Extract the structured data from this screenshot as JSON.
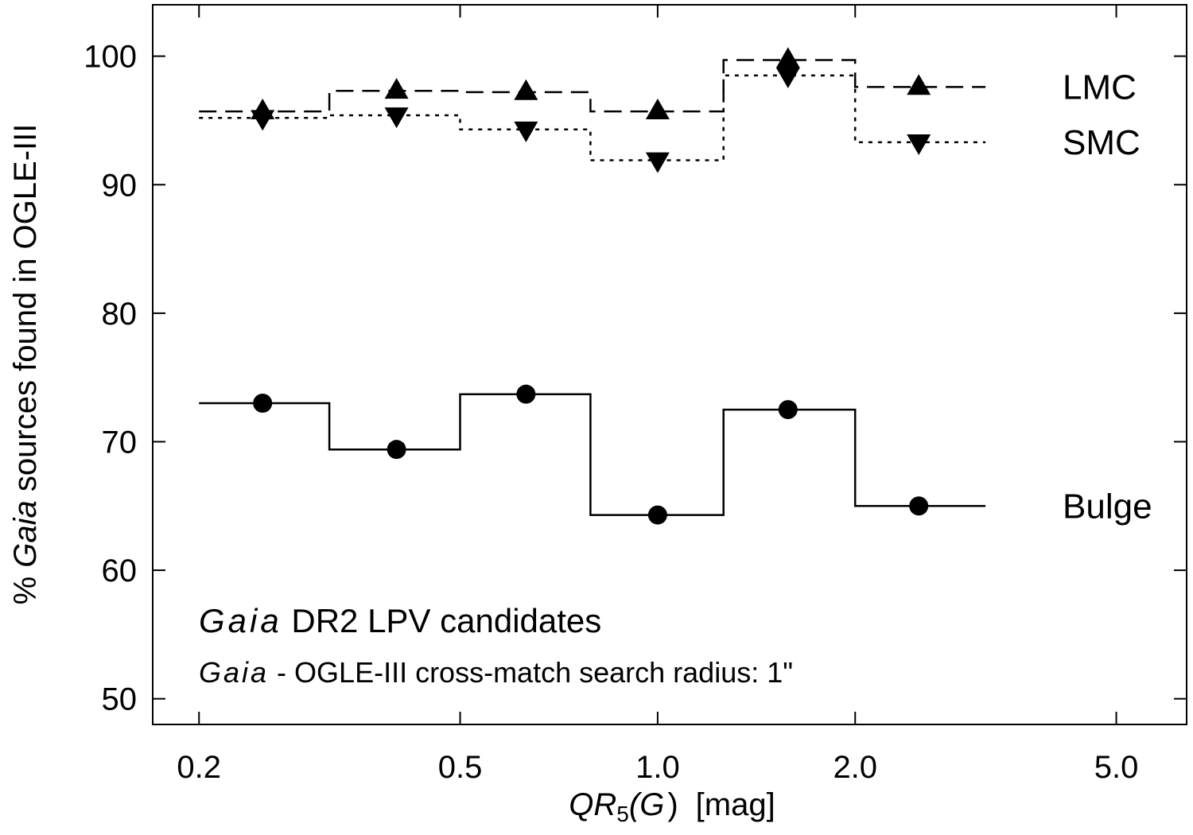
{
  "chart_data": {
    "type": "line",
    "xscale": "log",
    "xlim": [
      0.17,
      6.4
    ],
    "ylim": [
      48,
      104
    ],
    "x_ticks": [
      0.2,
      0.5,
      1.0,
      2.0,
      5.0
    ],
    "x_tick_labels": [
      "0.2",
      "0.5",
      "1.0",
      "2.0",
      "5.0"
    ],
    "y_ticks": [
      50,
      60,
      70,
      80,
      90,
      100
    ],
    "y_tick_labels": [
      "50",
      "60",
      "70",
      "80",
      "90",
      "100"
    ],
    "xlabel": {
      "prefix": "QR",
      "sub": "5",
      "mid": "(G",
      "close": ")",
      "suffix": "[mag]"
    },
    "ylabel": {
      "prefix": "% ",
      "italic": "Gaia",
      "suffix": " sources found in OGLE-III"
    },
    "annotations": {
      "line1_italic": "Gaia",
      "line1_rest": " DR2 LPV candidates",
      "line2_italic": "Gaia",
      "line2_rest": " - OGLE-III cross-match search radius: 1\""
    },
    "bin_edges": [
      0.2,
      0.316,
      0.5,
      0.79,
      1.26,
      2.0,
      3.16
    ],
    "series": [
      {
        "name": "LMC",
        "marker": "triangle-up",
        "linestyle": "dashed",
        "x": [
          0.25,
          0.4,
          0.63,
          1.0,
          1.58,
          2.5
        ],
        "values": [
          95.7,
          97.3,
          97.2,
          95.7,
          99.7,
          97.6
        ]
      },
      {
        "name": "SMC",
        "marker": "triangle-down",
        "linestyle": "dotted",
        "x": [
          0.25,
          0.4,
          0.63,
          1.0,
          1.58,
          2.5
        ],
        "values": [
          95.2,
          95.4,
          94.3,
          91.9,
          98.5,
          93.3
        ]
      },
      {
        "name": "Bulge",
        "marker": "circle",
        "linestyle": "solid",
        "x": [
          0.25,
          0.4,
          0.63,
          1.0,
          1.58,
          2.5
        ],
        "values": [
          73.0,
          69.4,
          73.7,
          64.3,
          72.5,
          65.0
        ]
      }
    ]
  }
}
